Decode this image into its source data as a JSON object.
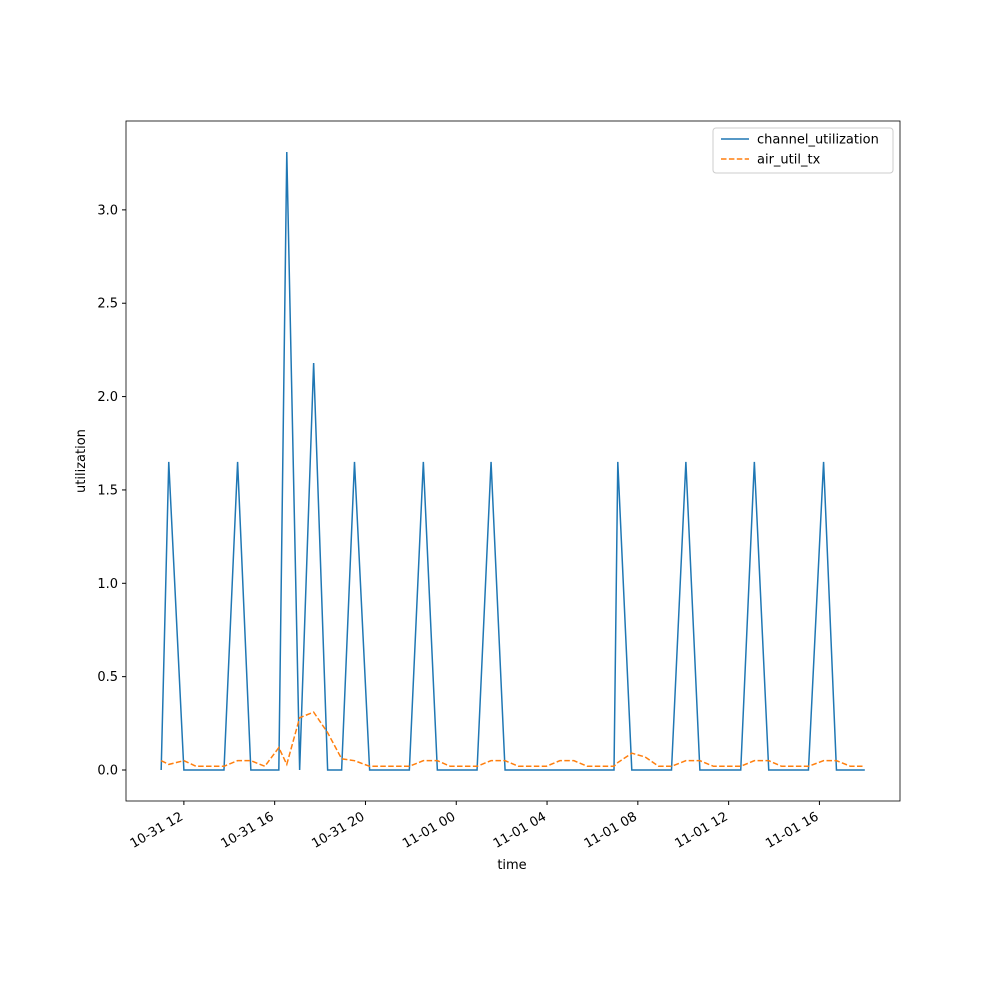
{
  "chart_data": {
    "type": "line",
    "x_label": "time",
    "y_label": "utilization",
    "x": [
      "10-31 11:00",
      "10-31 11:20",
      "10-31 12:00",
      "10-31 12:32",
      "10-31 13:46",
      "10-31 14:22",
      "10-31 14:57",
      "10-31 15:34",
      "10-31 16:11",
      "10-31 16:32",
      "10-31 17:06",
      "10-31 17:43",
      "10-31 18:20",
      "10-31 18:57",
      "10-31 19:31",
      "10-31 20:11",
      "10-31 21:56",
      "10-31 22:33",
      "10-31 23:10",
      "10-31 23:44",
      "11-01 00:55",
      "11-01 01:32",
      "11-01 02:09",
      "11-01 02:44",
      "11-01 03:58",
      "11-01 04:34",
      "11-01 05:11",
      "11-01 05:46",
      "11-01 06:57",
      "11-01 07:07",
      "11-01 07:44",
      "11-01 08:19",
      "11-01 08:55",
      "11-01 09:29",
      "11-01 10:07",
      "11-01 10:44",
      "11-01 11:20",
      "11-01 12:32",
      "11-01 13:08",
      "11-01 13:46",
      "11-01 14:20",
      "11-01 15:31",
      "11-01 16:11",
      "11-01 16:45",
      "11-01 17:22",
      "11-01 18:00"
    ],
    "series": [
      {
        "name": "channel_utilization",
        "color": "#1f77b4",
        "dash": "solid",
        "values": [
          0,
          1.65,
          0,
          0,
          0,
          1.65,
          0,
          0,
          0,
          3.31,
          0,
          2.18,
          0,
          0,
          1.65,
          0,
          0,
          1.65,
          0,
          0,
          0,
          1.65,
          0,
          0,
          0,
          0,
          0,
          0,
          0,
          1.65,
          0,
          0,
          0,
          0,
          1.65,
          0,
          0,
          0,
          1.65,
          0,
          0,
          0,
          1.65,
          0,
          0,
          0
        ]
      },
      {
        "name": "air_util_tx",
        "color": "#ff7f0e",
        "dash": "dashed",
        "values": [
          0.05,
          0.03,
          0.05,
          0.02,
          0.02,
          0.05,
          0.05,
          0.02,
          0.12,
          0.03,
          0.28,
          0.31,
          0.2,
          0.06,
          0.05,
          0.02,
          0.02,
          0.05,
          0.05,
          0.02,
          0.02,
          0.05,
          0.05,
          0.02,
          0.02,
          0.05,
          0.05,
          0.02,
          0.02,
          0.04,
          0.09,
          0.07,
          0.02,
          0.02,
          0.05,
          0.05,
          0.02,
          0.02,
          0.05,
          0.05,
          0.02,
          0.02,
          0.05,
          0.05,
          0.02,
          0.02
        ]
      }
    ],
    "xlim": [
      "10-31 09:27",
      "11-01 19:33"
    ],
    "xticks": [
      "10-31 12",
      "10-31 16",
      "10-31 20",
      "11-01 00",
      "11-01 04",
      "11-01 08",
      "11-01 12",
      "11-01 16"
    ],
    "ylim": [
      -0.166,
      3.476
    ],
    "yticks": [
      {
        "value": 0,
        "label": "0.0"
      },
      0.5,
      {
        "value": 1,
        "label": "1.0"
      },
      1.5,
      {
        "value": 2,
        "label": "2.0"
      },
      2.5,
      {
        "value": 3,
        "label": "3.0"
      }
    ],
    "legend": "upper right"
  }
}
